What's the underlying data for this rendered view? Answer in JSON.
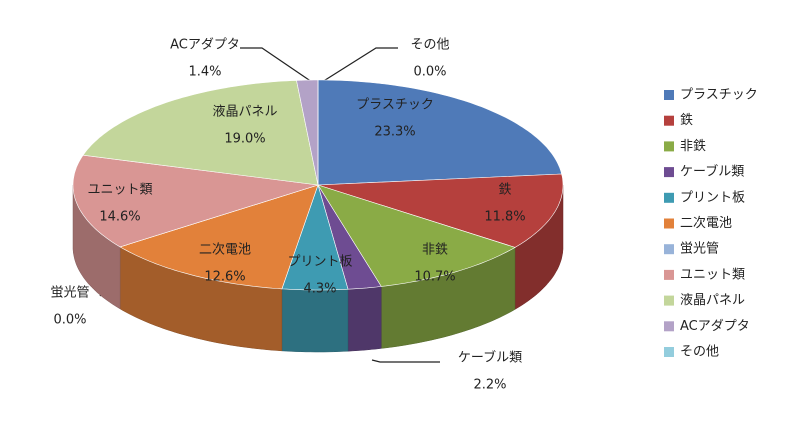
{
  "chart_data": {
    "type": "pie3d",
    "categories": [
      "プラスチック",
      "鉄",
      "非鉄",
      "ケーブル類",
      "プリント板",
      "二次電池",
      "蛍光管",
      "ユニット類",
      "液晶パネル",
      "ACアダプタ",
      "その他"
    ],
    "values": [
      23.3,
      11.8,
      10.7,
      2.2,
      4.3,
      12.6,
      0.0,
      14.6,
      19.0,
      1.4,
      0.0
    ],
    "value_labels": [
      "23.3%",
      "11.8%",
      "10.7%",
      "2.2%",
      "4.3%",
      "12.6%",
      "0.0%",
      "14.6%",
      "19.0%",
      "1.4%",
      "0.0%"
    ],
    "colors": [
      "#4f7ab8",
      "#b5403d",
      "#8aab46",
      "#6e4c92",
      "#3e9bb2",
      "#e2813a",
      "#98b3d9",
      "#d99694",
      "#c3d69b",
      "#b3a2c7",
      "#93cddd"
    ],
    "legend": "right"
  }
}
